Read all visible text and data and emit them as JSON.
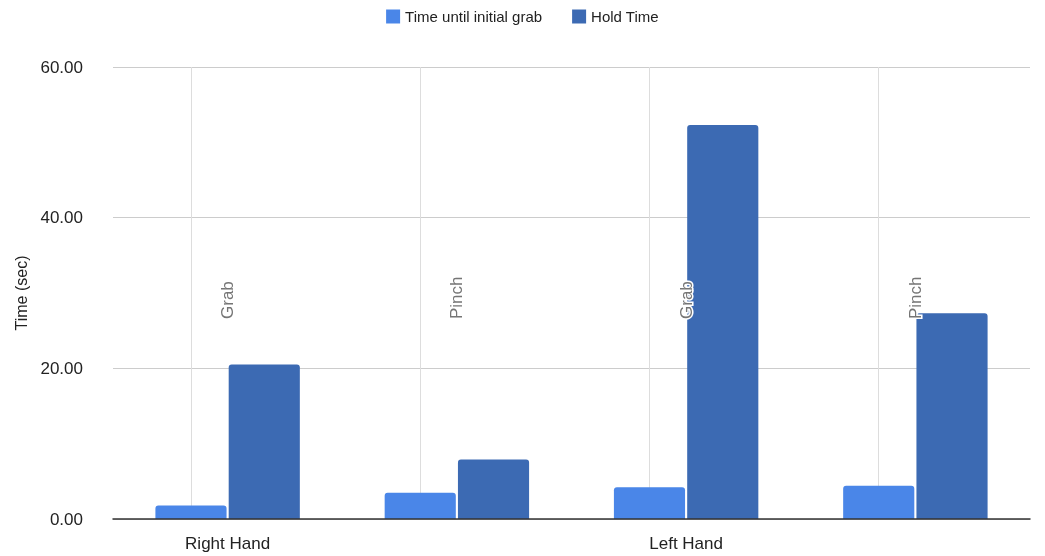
{
  "chart_data": {
    "type": "bar",
    "ylabel": "Time (sec)",
    "categories": [
      "Grab",
      "Pinch",
      "Grab",
      "Pinch"
    ],
    "series": [
      {
        "name": "Time until initial grab",
        "color": "#4a86e8",
        "values": [
          1.8,
          3.5,
          4.2,
          4.4
        ]
      },
      {
        "name": "Hold Time",
        "color": "#3c6ab3",
        "values": [
          20.5,
          7.9,
          52.3,
          27.3
        ]
      }
    ],
    "ylim": [
      0,
      60
    ],
    "yticks": [
      {
        "value": 0,
        "label": "0.00"
      },
      {
        "value": 20,
        "label": "20.00"
      },
      {
        "value": 40,
        "label": "40.00"
      },
      {
        "value": 60,
        "label": "60.00"
      }
    ],
    "annotations": [
      "Right Hand",
      "Left Hand"
    ],
    "grid": true,
    "legend": "top"
  }
}
